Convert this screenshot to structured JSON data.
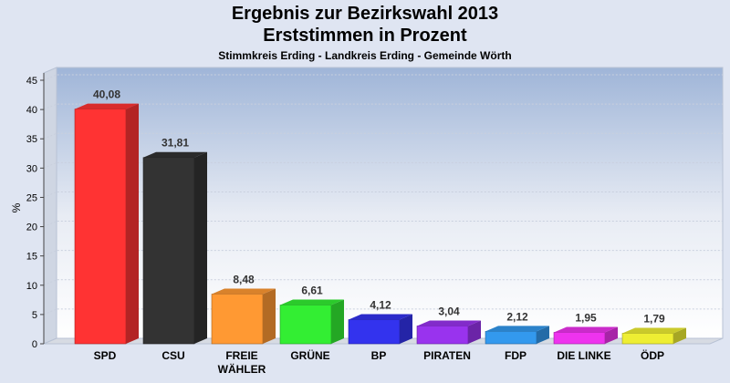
{
  "chart_data": {
    "type": "bar",
    "title": "Ergebnis zur Bezirkswahl 2013",
    "title2": "Erststimmen in Prozent",
    "subtitle": "Stimmkreis Erding - Landkreis Erding - Gemeinde Wörth",
    "ylabel": "%",
    "xlabel": "",
    "ylim": [
      0,
      45
    ],
    "yticks": [
      "0",
      "5",
      "10",
      "15",
      "20",
      "25",
      "30",
      "35",
      "40",
      "45"
    ],
    "grid": true,
    "categories": [
      "SPD",
      "CSU",
      "FREIE WÄHLER",
      "GRÜNE",
      "BP",
      "PIRATEN",
      "FDP",
      "DIE LINKE",
      "ÖDP"
    ],
    "values": [
      40.08,
      31.81,
      8.48,
      6.61,
      4.12,
      3.04,
      2.12,
      1.95,
      1.79
    ],
    "value_labels": [
      "40,08",
      "31,81",
      "8,48",
      "6,61",
      "4,12",
      "3,04",
      "2,12",
      "1,95",
      "1,79"
    ],
    "colors": [
      "#ff3333",
      "#333333",
      "#ff9933",
      "#33ee33",
      "#3333ee",
      "#9933ee",
      "#3399ee",
      "#ee33ee",
      "#eeee33"
    ]
  }
}
